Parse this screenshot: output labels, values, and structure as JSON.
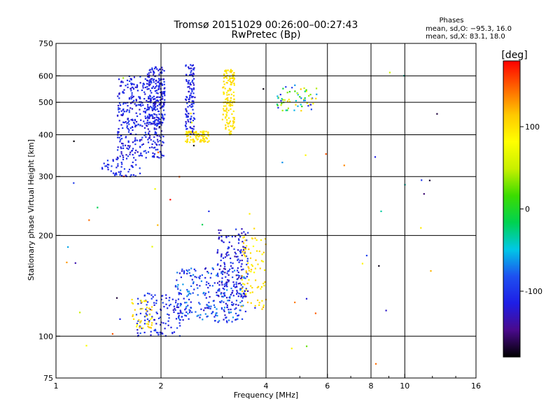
{
  "chart_data": {
    "type": "scatter",
    "title": "Tromsø 20151029 00:26:00–00:27:43",
    "subtitle": "RwPretec (Bp)",
    "xlabel": "Frequency [MHz]",
    "ylabel": "Stationary phase Virtual Height [km]",
    "x_scale": "log",
    "y_scale": "log",
    "xlim": [
      1,
      16
    ],
    "ylim": [
      75,
      750
    ],
    "x_ticks": [
      1,
      2,
      4,
      6,
      8,
      10,
      16
    ],
    "y_ticks": [
      75,
      100,
      200,
      300,
      400,
      500,
      600,
      750
    ],
    "x_grid": [
      2,
      4,
      6,
      8,
      10
    ],
    "y_grid": [
      100,
      200,
      300,
      400,
      500,
      600
    ],
    "grid": true,
    "phase_info": {
      "title": "Phases",
      "line1": "mean, sd,O:  −95.3, 16.0",
      "line2": "mean, sd,X:   83.1, 18.0"
    },
    "colorbar": {
      "label": "[deg]",
      "min": -180,
      "max": 180,
      "ticks": [
        100,
        0,
        -100
      ],
      "colors": [
        "#000000",
        "#4a0a8c",
        "#1e1ee6",
        "#1e50f0",
        "#00c8e6",
        "#00d250",
        "#3cdc00",
        "#c8f000",
        "#ffff00",
        "#ffc800",
        "#ff6400",
        "#ff0000"
      ]
    },
    "clusters": [
      {
        "name": "",
        "n": 420,
        "xlog": [
          1.5,
          2.05
        ],
        "ylog": [
          340,
          600
        ],
        "phase": [
          -130,
          -90
        ]
      },
      {
        "name": "",
        "n": 160,
        "xlog": [
          1.82,
          2.05
        ],
        "ylog": [
          430,
          640
        ],
        "phase": [
          -130,
          -90
        ]
      },
      {
        "name": "",
        "n": 120,
        "xlog": [
          2.35,
          2.5
        ],
        "ylog": [
          400,
          650
        ],
        "phase": [
          -130,
          -90
        ]
      },
      {
        "name": "",
        "n": 90,
        "xlog": [
          2.35,
          2.75
        ],
        "ylog": [
          380,
          410
        ],
        "phase": [
          90,
          110
        ]
      },
      {
        "name": "",
        "n": 150,
        "xlog": [
          3.0,
          3.25
        ],
        "ylog": [
          400,
          630
        ],
        "phase": [
          90,
          110
        ]
      },
      {
        "name": "",
        "n": 50,
        "xlog": [
          1.35,
          1.75
        ],
        "ylog": [
          300,
          340
        ],
        "phase": [
          -120,
          -90
        ]
      },
      {
        "name": "",
        "n": 260,
        "xlog": [
          2.2,
          3.5
        ],
        "ylog": [
          110,
          160
        ],
        "phase": [
          -130,
          -60
        ]
      },
      {
        "name": "",
        "n": 160,
        "xlog": [
          2.9,
          3.55
        ],
        "ylog": [
          130,
          210
        ],
        "phase": [
          -140,
          -90
        ]
      },
      {
        "name": "",
        "n": 120,
        "xlog": [
          1.7,
          2.3
        ],
        "ylog": [
          100,
          135
        ],
        "phase": [
          -130,
          -80
        ]
      },
      {
        "name": "",
        "n": 40,
        "xlog": [
          1.65,
          1.9
        ],
        "ylog": [
          105,
          130
        ],
        "phase": [
          80,
          120
        ]
      },
      {
        "name": "",
        "n": 80,
        "xlog": [
          3.4,
          4.0
        ],
        "ylog": [
          120,
          200
        ],
        "phase": [
          80,
          120
        ]
      },
      {
        "name": "",
        "n": 60,
        "xlog": [
          4.3,
          5.6
        ],
        "ylog": [
          470,
          560
        ],
        "phase": [
          -120,
          110
        ]
      },
      {
        "name": "",
        "n": 60,
        "xlog": [
          1.02,
          13
        ],
        "ylog": [
          78,
          700
        ],
        "phase": [
          -180,
          180
        ]
      }
    ]
  }
}
